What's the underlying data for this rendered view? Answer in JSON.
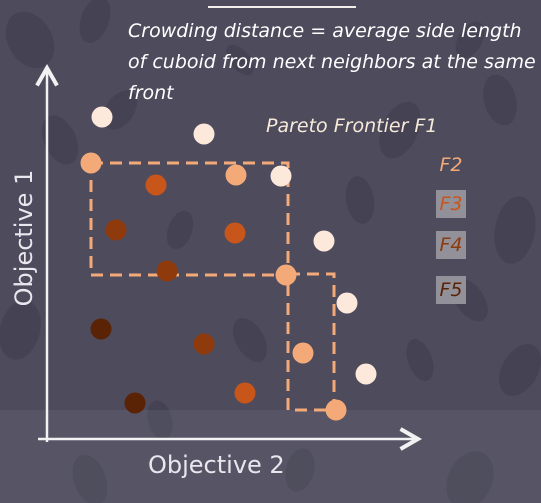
{
  "caption": "Crowding distance = average side length of cuboid from next neighbors at the same front",
  "legend": {
    "f1": "Pareto Frontier F1",
    "f2": "F2",
    "f3": "F3",
    "f4": "F4",
    "f5": "F5"
  },
  "axes": {
    "x_label": "Objective 2",
    "y_label": "Objective 1"
  },
  "colors": {
    "background": "#4d4b5c",
    "f1": "#fde8dc",
    "f2": "#f3aa78",
    "f3": "#c8561a",
    "f4": "#8e3a0c",
    "f5": "#5a2306",
    "cuboid": "#f3aa78",
    "axis": "#f2f2f2"
  }
}
